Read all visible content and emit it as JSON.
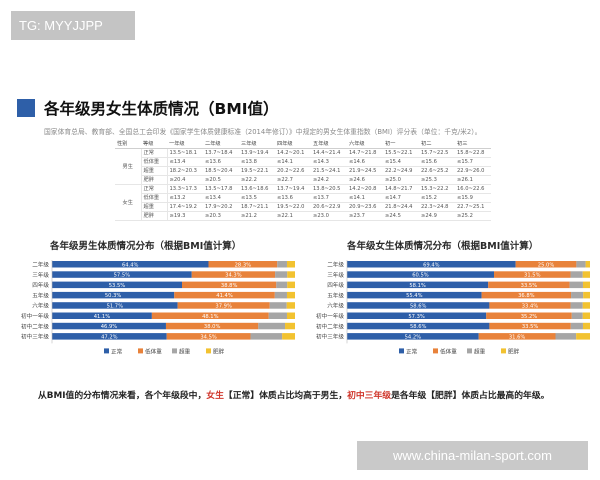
{
  "tag": "TG: MYYJJPP",
  "title": "各年级男女生体质情况（BMI值）",
  "note": "国家体育总局、教育部、全国总工会印发《国家学生体质健康标准（2014年修订）》中规定的男女生体重指数（BMI）评分表（单位：千克/米2）。",
  "table": {
    "headers": [
      "性别",
      "等级",
      "一年级",
      "二年级",
      "三年级",
      "四年级",
      "五年级",
      "六年级",
      "初一",
      "初二",
      "初三"
    ],
    "groups": [
      {
        "sex": "男生",
        "rows": [
          {
            "level": "正常",
            "values": [
              "13.5~18.1",
              "13.7~18.4",
              "13.9~19.4",
              "14.2~20.1",
              "14.4~21.4",
              "14.7~21.8",
              "15.5~22.1",
              "15.7~22.5",
              "15.8~22.8"
            ]
          },
          {
            "level": "低体重",
            "values": [
              "≤13.4",
              "≤13.6",
              "≤13.8",
              "≤14.1",
              "≤14.3",
              "≤14.6",
              "≤15.4",
              "≤15.6",
              "≤15.7"
            ]
          },
          {
            "level": "超重",
            "values": [
              "18.2~20.3",
              "18.5~20.4",
              "19.5~22.1",
              "20.2~22.6",
              "21.5~24.1",
              "21.9~24.5",
              "22.2~24.9",
              "22.6~25.2",
              "22.9~26.0"
            ]
          },
          {
            "level": "肥胖",
            "values": [
              "≥20.4",
              "≥20.5",
              "≥22.2",
              "≥22.7",
              "≥24.2",
              "≥24.6",
              "≥25.0",
              "≥25.3",
              "≥26.1"
            ]
          }
        ]
      },
      {
        "sex": "女生",
        "rows": [
          {
            "level": "正常",
            "values": [
              "13.3~17.3",
              "13.5~17.8",
              "13.6~18.6",
              "13.7~19.4",
              "13.8~20.5",
              "14.2~20.8",
              "14.8~21.7",
              "15.3~22.2",
              "16.0~22.6"
            ]
          },
          {
            "level": "低体重",
            "values": [
              "≤13.2",
              "≤13.4",
              "≤13.5",
              "≤13.6",
              "≤13.7",
              "≤14.1",
              "≤14.7",
              "≤15.2",
              "≤15.9"
            ]
          },
          {
            "level": "超重",
            "values": [
              "17.4~19.2",
              "17.9~20.2",
              "18.7~21.1",
              "19.5~22.0",
              "20.6~22.9",
              "20.9~23.6",
              "21.8~24.4",
              "22.3~24.8",
              "22.7~25.1"
            ]
          },
          {
            "level": "肥胖",
            "values": [
              "≥19.3",
              "≥20.3",
              "≥21.2",
              "≥22.1",
              "≥23.0",
              "≥23.7",
              "≥24.5",
              "≥24.9",
              "≥25.2"
            ]
          }
        ]
      }
    ]
  },
  "chart_data": [
    {
      "type": "bar",
      "stacked": true,
      "orientation": "horizontal",
      "title": "各年级男生体质情况分布（根据BMI值计算）",
      "categories": [
        "二年级",
        "三年级",
        "四年级",
        "五年级",
        "六年级",
        "初中一年级",
        "初中二年级",
        "初中三年级"
      ],
      "series": [
        {
          "name": "正常",
          "values": [
            64.4,
            57.5,
            53.5,
            50.3,
            51.7,
            41.1,
            46.9,
            47.2
          ]
        },
        {
          "name": "低体重",
          "values": [
            28.3,
            34.3,
            38.8,
            41.4,
            37.9,
            48.1,
            38.0,
            34.5
          ]
        },
        {
          "name": "超重",
          "values": [
            4.0,
            5.0,
            4.5,
            5.0,
            7.0,
            7.5,
            11.0,
            13.0
          ]
        },
        {
          "name": "肥胖",
          "values": [
            3.3,
            3.2,
            3.2,
            3.3,
            3.4,
            3.3,
            4.1,
            5.3
          ]
        }
      ],
      "data_labels": [
        [
          "64.4%",
          "28.3%"
        ],
        [
          "57.5%",
          "34.3%"
        ],
        [
          "53.5%",
          "38.8%"
        ],
        [
          "50.3%",
          "41.4%"
        ],
        [
          "51.7%",
          "37.9%"
        ],
        [
          "41.1%",
          "48.1%"
        ],
        [
          "46.9%",
          "38.0%"
        ],
        [
          "47.2%",
          "34.5%"
        ]
      ],
      "legend": [
        "正常",
        "低体重",
        "超重",
        "肥胖"
      ],
      "legend_position": "bottom"
    },
    {
      "type": "bar",
      "stacked": true,
      "orientation": "horizontal",
      "title": "各年级女生体质情况分布（根据BMI值计算）",
      "categories": [
        "二年级",
        "三年级",
        "四年级",
        "五年级",
        "六年级",
        "初中一年级",
        "初中二年级",
        "初中三年级"
      ],
      "series": [
        {
          "name": "正常",
          "values": [
            69.4,
            60.5,
            58.1,
            55.4,
            58.6,
            57.3,
            58.6,
            54.2
          ]
        },
        {
          "name": "低体重",
          "values": [
            25.0,
            31.5,
            33.5,
            36.8,
            33.4,
            35.2,
            33.5,
            31.6
          ]
        },
        {
          "name": "超重",
          "values": [
            3.8,
            5.0,
            5.5,
            5.0,
            5.0,
            4.5,
            5.0,
            8.5
          ]
        },
        {
          "name": "肥胖",
          "values": [
            1.8,
            3.0,
            2.9,
            2.8,
            3.0,
            3.0,
            2.9,
            5.7
          ]
        }
      ],
      "data_labels": [
        [
          "69.4%",
          "25.0%"
        ],
        [
          "60.5%",
          "31.5%"
        ],
        [
          "58.1%",
          "33.5%"
        ],
        [
          "55.4%",
          "36.8%"
        ],
        [
          "58.6%",
          "33.4%"
        ],
        [
          "57.3%",
          "35.2%"
        ],
        [
          "58.6%",
          "33.5%"
        ],
        [
          "54.2%",
          "31.6%"
        ]
      ],
      "legend": [
        "正常",
        "低体重",
        "超重",
        "肥胖"
      ],
      "legend_position": "bottom"
    }
  ],
  "colors": {
    "正常": "#2e5fa8",
    "低体重": "#e8823a",
    "超重": "#a6a6a6",
    "肥胖": "#f2c230",
    "accent": "#2e5fa8",
    "highlight": "#d0362b"
  },
  "conclusion": {
    "part1": "从BMI值的分布情况来看，各个年级段中，",
    "part2": "女生",
    "part3": "【正常】体质占比均高于男生，",
    "part4": "初中三年级",
    "part5": "是各年级【肥胖】体质占比最高的年级。"
  },
  "watermark": "www.china-milan-sport.com"
}
